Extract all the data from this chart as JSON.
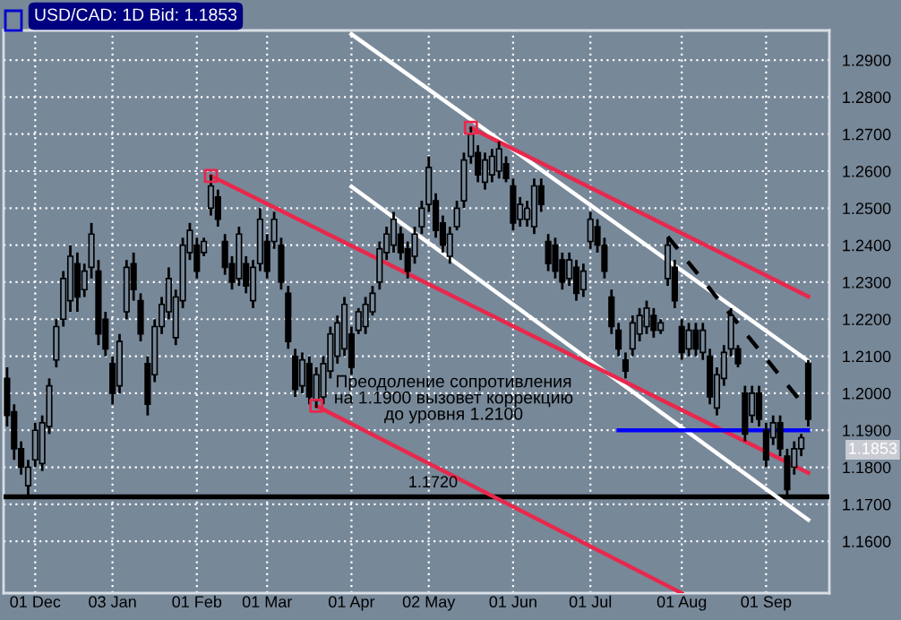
{
  "chart_data": {
    "type": "candlestick",
    "title": "USD/CAD: 1D Bid: 1.1853",
    "categories": [
      null,
      null,
      null,
      null,
      "01 Dec",
      null,
      null,
      null,
      null,
      null,
      null,
      null,
      null,
      null,
      null,
      "03 Jan",
      null,
      null,
      null,
      null,
      null,
      null,
      null,
      null,
      null,
      null,
      null,
      "01 Feb",
      null,
      null,
      null,
      null,
      null,
      null,
      null,
      null,
      null,
      "01 Mar",
      null,
      null,
      null,
      null,
      null,
      null,
      null,
      null,
      null,
      null,
      null,
      "01 Apr",
      null,
      null,
      null,
      null,
      null,
      null,
      null,
      null,
      null,
      null,
      "02 May",
      null,
      null,
      null,
      null,
      null,
      null,
      null,
      null,
      null,
      null,
      null,
      "01 Jun",
      null,
      null,
      null,
      null,
      null,
      null,
      null,
      null,
      null,
      null,
      "01 Jul",
      null,
      null,
      null,
      null,
      null,
      null,
      null,
      null,
      null,
      null,
      null,
      null,
      "01 Aug",
      null,
      null,
      null,
      null,
      null,
      null,
      null,
      null,
      null,
      null,
      null,
      "01 Sep",
      null,
      null,
      null,
      null,
      null,
      null
    ],
    "ohlc": [
      [
        1.204,
        1.207,
        1.191,
        1.194
      ],
      [
        1.195,
        1.197,
        1.182,
        1.185
      ],
      [
        1.185,
        1.187,
        1.178,
        1.18
      ],
      [
        1.175,
        1.182,
        1.172,
        1.18
      ],
      [
        1.182,
        1.192,
        1.18,
        1.19
      ],
      [
        1.181,
        1.194,
        1.179,
        1.192
      ],
      [
        1.191,
        1.204,
        1.189,
        1.202
      ],
      [
        1.209,
        1.22,
        1.207,
        1.218
      ],
      [
        1.22,
        1.233,
        1.218,
        1.231
      ],
      [
        1.225,
        1.24,
        1.222,
        1.237
      ],
      [
        1.235,
        1.238,
        1.222,
        1.226
      ],
      [
        1.228,
        1.235,
        1.226,
        1.233
      ],
      [
        1.234,
        1.246,
        1.231,
        1.243
      ],
      [
        1.233,
        1.236,
        1.213,
        1.216
      ],
      [
        1.22,
        1.222,
        1.21,
        1.212
      ],
      [
        1.208,
        1.21,
        1.197,
        1.2
      ],
      [
        1.202,
        1.216,
        1.2,
        1.214
      ],
      [
        1.222,
        1.236,
        1.22,
        1.234
      ],
      [
        1.235,
        1.238,
        1.225,
        1.228
      ],
      [
        1.225,
        1.227,
        1.214,
        1.216
      ],
      [
        1.208,
        1.21,
        1.194,
        1.197
      ],
      [
        1.205,
        1.22,
        1.203,
        1.218
      ],
      [
        1.218,
        1.226,
        1.216,
        1.224
      ],
      [
        1.222,
        1.234,
        1.22,
        1.231
      ],
      [
        1.215,
        1.228,
        1.213,
        1.226
      ],
      [
        1.225,
        1.242,
        1.223,
        1.24
      ],
      [
        1.238,
        1.246,
        1.236,
        1.244
      ],
      [
        1.24,
        1.242,
        1.231,
        1.233
      ],
      [
        1.238,
        1.242,
        1.237,
        1.241
      ],
      [
        1.25,
        1.259,
        1.248,
        1.256
      ],
      [
        1.253,
        1.255,
        1.245,
        1.247
      ],
      [
        1.241,
        1.243,
        1.232,
        1.234
      ],
      [
        1.235,
        1.237,
        1.228,
        1.23
      ],
      [
        1.231,
        1.245,
        1.229,
        1.243
      ],
      [
        1.235,
        1.237,
        1.227,
        1.229
      ],
      [
        1.225,
        1.236,
        1.223,
        1.234
      ],
      [
        1.235,
        1.25,
        1.233,
        1.247
      ],
      [
        1.241,
        1.243,
        1.231,
        1.233
      ],
      [
        1.241,
        1.249,
        1.239,
        1.247
      ],
      [
        1.24,
        1.242,
        1.228,
        1.23
      ],
      [
        1.227,
        1.229,
        1.212,
        1.214
      ],
      [
        1.21,
        1.212,
        1.199,
        1.201
      ],
      [
        1.202,
        1.211,
        1.2,
        1.209
      ],
      [
        1.208,
        1.21,
        1.197,
        1.199
      ],
      [
        1.198,
        1.207,
        1.196,
        1.205
      ],
      [
        1.199,
        1.21,
        1.197,
        1.208
      ],
      [
        1.206,
        1.218,
        1.204,
        1.216
      ],
      [
        1.21,
        1.221,
        1.208,
        1.219
      ],
      [
        1.212,
        1.226,
        1.21,
        1.224
      ],
      [
        1.216,
        1.218,
        1.205,
        1.207
      ],
      [
        1.217,
        1.223,
        1.216,
        1.222
      ],
      [
        1.218,
        1.226,
        1.216,
        1.224
      ],
      [
        1.222,
        1.229,
        1.221,
        1.227
      ],
      [
        1.23,
        1.241,
        1.228,
        1.239
      ],
      [
        1.238,
        1.245,
        1.236,
        1.243
      ],
      [
        1.24,
        1.249,
        1.238,
        1.247
      ],
      [
        1.243,
        1.245,
        1.236,
        1.238
      ],
      [
        1.239,
        1.241,
        1.231,
        1.233
      ],
      [
        1.237,
        1.245,
        1.235,
        1.243
      ],
      [
        1.245,
        1.252,
        1.243,
        1.25
      ],
      [
        1.251,
        1.264,
        1.249,
        1.261
      ],
      [
        1.252,
        1.254,
        1.242,
        1.244
      ],
      [
        1.246,
        1.248,
        1.238,
        1.24
      ],
      [
        1.237,
        1.245,
        1.235,
        1.243
      ],
      [
        1.245,
        1.252,
        1.244,
        1.25
      ],
      [
        1.252,
        1.265,
        1.25,
        1.263
      ],
      [
        1.264,
        1.272,
        1.262,
        1.27
      ],
      [
        1.265,
        1.267,
        1.257,
        1.259
      ],
      [
        1.257,
        1.265,
        1.255,
        1.263
      ],
      [
        1.259,
        1.266,
        1.257,
        1.264
      ],
      [
        1.26,
        1.268,
        1.258,
        1.266
      ],
      [
        1.262,
        1.264,
        1.257,
        1.258
      ],
      [
        1.256,
        1.258,
        1.244,
        1.246
      ],
      [
        1.247,
        1.253,
        1.245,
        1.251
      ],
      [
        1.247,
        1.252,
        1.245,
        1.25
      ],
      [
        1.245,
        1.258,
        1.243,
        1.256
      ],
      [
        1.256,
        1.258,
        1.249,
        1.251
      ],
      [
        1.241,
        1.243,
        1.233,
        1.235
      ],
      [
        1.24,
        1.242,
        1.231,
        1.233
      ],
      [
        1.236,
        1.238,
        1.228,
        1.23
      ],
      [
        1.231,
        1.238,
        1.229,
        1.236
      ],
      [
        1.234,
        1.236,
        1.225,
        1.227
      ],
      [
        1.228,
        1.235,
        1.226,
        1.233
      ],
      [
        1.241,
        1.249,
        1.239,
        1.247
      ],
      [
        1.245,
        1.247,
        1.238,
        1.24
      ],
      [
        1.24,
        1.242,
        1.231,
        1.233
      ],
      [
        1.226,
        1.228,
        1.216,
        1.218
      ],
      [
        1.217,
        1.219,
        1.21,
        1.212
      ],
      [
        1.209,
        1.211,
        1.204,
        1.206
      ],
      [
        1.212,
        1.221,
        1.21,
        1.219
      ],
      [
        1.216,
        1.223,
        1.214,
        1.221
      ],
      [
        1.218,
        1.225,
        1.216,
        1.223
      ],
      [
        1.221,
        1.223,
        1.215,
        1.217
      ],
      [
        1.217,
        1.22,
        1.216,
        1.219
      ],
      [
        1.231,
        1.242,
        1.229,
        1.24
      ],
      [
        1.234,
        1.236,
        1.223,
        1.225
      ],
      [
        1.218,
        1.22,
        1.209,
        1.211
      ],
      [
        1.212,
        1.219,
        1.21,
        1.217
      ],
      [
        1.217,
        1.219,
        1.21,
        1.212
      ],
      [
        1.211,
        1.219,
        1.209,
        1.217
      ],
      [
        1.21,
        1.212,
        1.197,
        1.199
      ],
      [
        1.196,
        1.207,
        1.194,
        1.205
      ],
      [
        1.204,
        1.213,
        1.202,
        1.211
      ],
      [
        1.212,
        1.223,
        1.21,
        1.221
      ],
      [
        1.212,
        1.213,
        1.207,
        1.208
      ],
      [
        1.2,
        1.202,
        1.187,
        1.189
      ],
      [
        1.194,
        1.202,
        1.192,
        1.2
      ],
      [
        1.2,
        1.202,
        1.191,
        1.193
      ],
      [
        1.19,
        1.192,
        1.18,
        1.182
      ],
      [
        1.188,
        1.194,
        1.186,
        1.192
      ],
      [
        1.192,
        1.194,
        1.183,
        1.185
      ],
      [
        1.183,
        1.185,
        1.172,
        1.174
      ],
      [
        1.18,
        1.187,
        1.178,
        1.185
      ],
      [
        1.185,
        1.189,
        1.183,
        1.188
      ],
      [
        1.208,
        1.209,
        1.191,
        1.193
      ]
    ],
    "series": [
      {
        "type": "line",
        "color": "#ffffff",
        "values": [
          null,
          null,
          null,
          null,
          null,
          null,
          null,
          null,
          null,
          null,
          null,
          null,
          null,
          null,
          null,
          null,
          null,
          null,
          null,
          null,
          null,
          null,
          null,
          null,
          null,
          null,
          null,
          null,
          null,
          null,
          null,
          null,
          null,
          null,
          null,
          null,
          null,
          null,
          null,
          null,
          null,
          null,
          null,
          null,
          null,
          null,
          null,
          null,
          null,
          1.297,
          null,
          null,
          null,
          null,
          null,
          null,
          null,
          null,
          null,
          null,
          null,
          null,
          null,
          null,
          null,
          null,
          null,
          null,
          null,
          null,
          null,
          null,
          null,
          null,
          null,
          null,
          null,
          null,
          null,
          null,
          null,
          null,
          null,
          null,
          null,
          null,
          null,
          null,
          null,
          null,
          null,
          null,
          null,
          null,
          null,
          null,
          null,
          null,
          null,
          null,
          null,
          null,
          null,
          null,
          null,
          null,
          null,
          null,
          null,
          null,
          null,
          null,
          null,
          null,
          1.2087
        ]
      },
      {
        "type": "line",
        "color": "#ffffff",
        "values": [
          null,
          null,
          null,
          null,
          null,
          null,
          null,
          null,
          null,
          null,
          null,
          null,
          null,
          null,
          null,
          null,
          null,
          null,
          null,
          null,
          null,
          null,
          null,
          null,
          null,
          null,
          null,
          null,
          null,
          null,
          null,
          null,
          null,
          null,
          null,
          null,
          null,
          null,
          null,
          null,
          null,
          null,
          null,
          null,
          null,
          null,
          null,
          null,
          null,
          1.2558,
          null,
          null,
          null,
          null,
          null,
          null,
          null,
          null,
          null,
          null,
          null,
          null,
          null,
          null,
          null,
          null,
          null,
          null,
          null,
          null,
          null,
          null,
          null,
          null,
          null,
          null,
          null,
          null,
          null,
          null,
          null,
          null,
          null,
          null,
          null,
          null,
          null,
          null,
          null,
          null,
          null,
          null,
          null,
          null,
          null,
          null,
          null,
          null,
          null,
          null,
          null,
          null,
          null,
          null,
          null,
          null,
          null,
          null,
          null,
          null,
          null,
          null,
          null,
          null,
          1.1658
        ]
      },
      {
        "type": "line",
        "color": "#e8284c",
        "values": [
          null,
          null,
          null,
          null,
          null,
          null,
          null,
          null,
          null,
          null,
          null,
          null,
          null,
          null,
          null,
          null,
          null,
          null,
          null,
          null,
          null,
          null,
          null,
          null,
          null,
          null,
          null,
          null,
          null,
          1.2587,
          null,
          null,
          null,
          null,
          null,
          null,
          null,
          null,
          null,
          null,
          null,
          null,
          null,
          null,
          null,
          null,
          null,
          null,
          null,
          null,
          null,
          null,
          null,
          null,
          null,
          null,
          null,
          null,
          null,
          null,
          null,
          null,
          null,
          null,
          null,
          null,
          null,
          null,
          null,
          null,
          null,
          null,
          null,
          null,
          null,
          null,
          null,
          null,
          null,
          null,
          null,
          null,
          null,
          null,
          null,
          null,
          null,
          null,
          null,
          null,
          null,
          null,
          null,
          null,
          null,
          null,
          null,
          null,
          null,
          null,
          null,
          null,
          null,
          null,
          null,
          null,
          null,
          null,
          null,
          null,
          null,
          null,
          null,
          null,
          1.1785
        ]
      },
      {
        "type": "line",
        "color": "#e8284c",
        "values": [
          null,
          null,
          null,
          null,
          null,
          null,
          null,
          null,
          null,
          null,
          null,
          null,
          null,
          null,
          null,
          null,
          null,
          null,
          null,
          null,
          null,
          null,
          null,
          null,
          null,
          null,
          null,
          null,
          null,
          null,
          null,
          null,
          null,
          null,
          null,
          null,
          null,
          null,
          null,
          null,
          null,
          null,
          null,
          null,
          null,
          null,
          null,
          null,
          null,
          null,
          null,
          null,
          null,
          null,
          null,
          null,
          null,
          null,
          null,
          null,
          null,
          null,
          null,
          null,
          null,
          null,
          1.2717,
          null,
          null,
          null,
          null,
          null,
          null,
          null,
          null,
          null,
          null,
          null,
          null,
          null,
          null,
          null,
          null,
          null,
          null,
          null,
          null,
          null,
          null,
          null,
          null,
          null,
          null,
          null,
          null,
          null,
          null,
          null,
          null,
          null,
          null,
          null,
          null,
          null,
          null,
          null,
          null,
          null,
          null,
          null,
          null,
          null,
          null,
          null,
          1.2261
        ]
      },
      {
        "type": "line",
        "color": "#e8284c",
        "values": [
          null,
          null,
          null,
          null,
          null,
          null,
          null,
          null,
          null,
          null,
          null,
          null,
          null,
          null,
          null,
          null,
          null,
          null,
          null,
          null,
          null,
          null,
          null,
          null,
          null,
          null,
          null,
          null,
          null,
          null,
          null,
          null,
          null,
          null,
          null,
          null,
          null,
          null,
          null,
          null,
          null,
          null,
          null,
          null,
          1.1966,
          null,
          null,
          null,
          null,
          null,
          null,
          null,
          null,
          null,
          null,
          null,
          null,
          null,
          null,
          null,
          null,
          null,
          null,
          null,
          null,
          null,
          null,
          null,
          null,
          null,
          null,
          null,
          null,
          null,
          null,
          null,
          null,
          null,
          null,
          null,
          null,
          null,
          null,
          null,
          null,
          null,
          null,
          null,
          null,
          null,
          null,
          null,
          null,
          null,
          null,
          null,
          1.146,
          null,
          null,
          null,
          null,
          null,
          null,
          null,
          null,
          null,
          null,
          null,
          null,
          null,
          null,
          null,
          null,
          null,
          null
        ]
      },
      {
        "type": "line",
        "color": "#000000",
        "line_style": "dashed",
        "values": [
          null,
          null,
          null,
          null,
          null,
          null,
          null,
          null,
          null,
          null,
          null,
          null,
          null,
          null,
          null,
          null,
          null,
          null,
          null,
          null,
          null,
          null,
          null,
          null,
          null,
          null,
          null,
          null,
          null,
          null,
          null,
          null,
          null,
          null,
          null,
          null,
          null,
          null,
          null,
          null,
          null,
          null,
          null,
          null,
          null,
          null,
          null,
          null,
          null,
          null,
          null,
          null,
          null,
          null,
          null,
          null,
          null,
          null,
          null,
          null,
          null,
          null,
          null,
          null,
          null,
          null,
          null,
          null,
          null,
          null,
          null,
          null,
          null,
          null,
          null,
          null,
          null,
          null,
          null,
          null,
          null,
          null,
          null,
          null,
          null,
          null,
          null,
          null,
          null,
          null,
          null,
          null,
          null,
          null,
          1.2423,
          null,
          null,
          null,
          null,
          null,
          null,
          null,
          null,
          null,
          null,
          null,
          null,
          null,
          null,
          null,
          null,
          null,
          null,
          1.1976,
          null
        ]
      },
      {
        "type": "line",
        "color": "#0000ff",
        "values": [
          null,
          null,
          null,
          null,
          null,
          null,
          null,
          null,
          null,
          null,
          null,
          null,
          null,
          null,
          null,
          null,
          null,
          null,
          null,
          null,
          null,
          null,
          null,
          null,
          null,
          null,
          null,
          null,
          null,
          null,
          null,
          null,
          null,
          null,
          null,
          null,
          null,
          null,
          null,
          null,
          null,
          null,
          null,
          null,
          null,
          null,
          null,
          null,
          null,
          null,
          null,
          null,
          null,
          null,
          null,
          null,
          null,
          null,
          null,
          null,
          null,
          null,
          null,
          null,
          null,
          null,
          null,
          null,
          null,
          null,
          null,
          null,
          null,
          null,
          null,
          null,
          null,
          null,
          null,
          null,
          null,
          null,
          null,
          null,
          null,
          null,
          null,
          1.19,
          null,
          null,
          null,
          null,
          null,
          null,
          null,
          null,
          null,
          null,
          null,
          null,
          null,
          null,
          null,
          null,
          null,
          null,
          null,
          null,
          null,
          null,
          null,
          null,
          null,
          null,
          1.19
        ]
      },
      {
        "type": "scatter",
        "color": "#e8284c",
        "marker": "square",
        "values": [
          null,
          null,
          null,
          null,
          null,
          null,
          null,
          null,
          null,
          null,
          null,
          null,
          null,
          null,
          null,
          null,
          null,
          null,
          null,
          null,
          null,
          null,
          null,
          null,
          null,
          null,
          null,
          null,
          null,
          1.2587,
          null,
          null,
          null,
          null,
          null,
          null,
          null,
          null,
          null,
          null,
          null,
          null,
          null,
          null,
          1.1966,
          null,
          null,
          null,
          null,
          null,
          null,
          null,
          null,
          null,
          null,
          null,
          null,
          null,
          null,
          null,
          null,
          null,
          null,
          null,
          null,
          null,
          1.2717,
          null,
          null,
          null,
          null,
          null,
          null,
          null,
          null,
          null,
          null,
          null,
          null,
          null,
          null,
          null,
          null,
          null,
          null,
          null,
          null,
          null,
          null,
          null,
          null,
          null,
          null,
          null,
          null,
          null,
          null,
          null,
          null,
          null,
          null,
          null,
          null,
          null,
          null,
          null,
          null,
          null,
          null,
          null,
          null,
          null,
          null,
          null,
          null
        ]
      }
    ],
    "ref_lines": [
      {
        "axis": "y",
        "value": 1.172,
        "label": "1.1720",
        "color": "#000000"
      }
    ],
    "annotations": [
      "Преодоление сопротивления\nна 1.1900 вызовет коррекцию\nдо уровня 1.2100",
      "1.1853"
    ],
    "ylim": [
      1.146,
      1.298
    ],
    "yticks": [
      {
        "value": 1.16,
        "label": "1.1600"
      },
      {
        "value": 1.17,
        "label": "1.1700"
      },
      {
        "value": 1.18,
        "label": "1.1800"
      },
      {
        "value": 1.19,
        "label": "1.1900"
      },
      {
        "value": 1.2,
        "label": "1.2000"
      },
      {
        "value": 1.21,
        "label": "1.2100"
      },
      {
        "value": 1.22,
        "label": "1.2200"
      },
      {
        "value": 1.23,
        "label": "1.2300"
      },
      {
        "value": 1.24,
        "label": "1.2400"
      },
      {
        "value": 1.25,
        "label": "1.2500"
      },
      {
        "value": 1.26,
        "label": "1.2600"
      },
      {
        "value": 1.27,
        "label": "1.2700"
      },
      {
        "value": 1.28,
        "label": "1.2800"
      },
      {
        "value": 1.29,
        "label": "1.2900"
      }
    ],
    "grid": true,
    "color": "#000000"
  }
}
